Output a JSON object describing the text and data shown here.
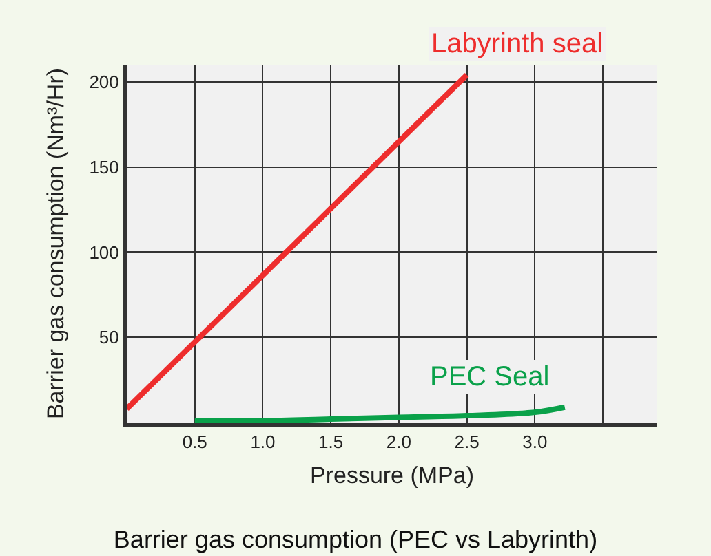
{
  "chart_data": {
    "type": "line",
    "title": "Barrier gas consumption (PEC vs Labyrinth)",
    "xlabel": "Pressure (MPa)",
    "ylabel": "Barrier gas consumption (Nm³/Hr)",
    "series": [
      {
        "name": "Labyrinth seal",
        "color": "#ee2d2d",
        "x": [
          0,
          2.5
        ],
        "values": [
          8,
          204
        ]
      },
      {
        "name": "PEC Seal",
        "color": "#0aa14a",
        "x": [
          0.5,
          1.0,
          1.5,
          2.0,
          2.5,
          3.0,
          3.22
        ],
        "values": [
          1,
          1,
          2,
          3,
          4,
          6,
          9
        ]
      }
    ],
    "xlim": [
      0,
      3.9
    ],
    "xticks": [
      0.5,
      {
        "value": 1,
        "label": "1.0"
      },
      1.5,
      {
        "value": 2,
        "label": "2.0"
      },
      2.5,
      {
        "value": 3,
        "label": "3.0"
      },
      {
        "value": 3.5,
        "label": null
      }
    ],
    "ylim": [
      0,
      210
    ],
    "yticks": [
      50,
      100,
      150,
      200
    ],
    "grid": true,
    "legend": false,
    "marker": "none",
    "line_style": "solid"
  }
}
